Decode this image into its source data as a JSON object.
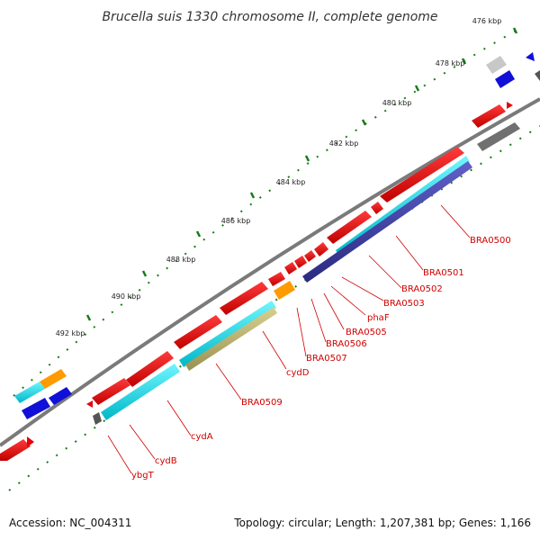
{
  "title": "Brucella suis 1330 chromosome II, complete genome",
  "footer": {
    "accession": "Accession: NC_004311",
    "summary": "Topology: circular; Length: 1,207,381 bp; Genes: 1,166"
  },
  "ticks": [
    {
      "label": "476 kbp"
    },
    {
      "label": "478 kbp"
    },
    {
      "label": "480 kbp"
    },
    {
      "label": "482 kbp"
    },
    {
      "label": "484 kbp"
    },
    {
      "label": "486 kbp"
    },
    {
      "label": "488 kbp"
    },
    {
      "label": "490 kbp"
    },
    {
      "label": "492 kbp"
    }
  ],
  "gene_labels": [
    {
      "name": "BRA0500"
    },
    {
      "name": "BRA0501"
    },
    {
      "name": "BRA0502"
    },
    {
      "name": "BRA0503"
    },
    {
      "name": "phaF"
    },
    {
      "name": "BRA0505"
    },
    {
      "name": "BRA0506"
    },
    {
      "name": "BRA0507"
    },
    {
      "name": "cydD"
    },
    {
      "name": "BRA0509"
    },
    {
      "name": "cydA"
    },
    {
      "name": "cydB"
    },
    {
      "name": "ybgT"
    }
  ],
  "colors": {
    "backbone": "#7a7a7a",
    "gene_red": "#e8000b",
    "cyan": "#00d8e0",
    "navy": "#3a3aa0",
    "olive": "#b8b06a",
    "orange": "#ff9a00",
    "blue": "#1010d8",
    "gray": "#707070",
    "lightgray": "#c8c8c8",
    "green": "#1a7a1a"
  }
}
